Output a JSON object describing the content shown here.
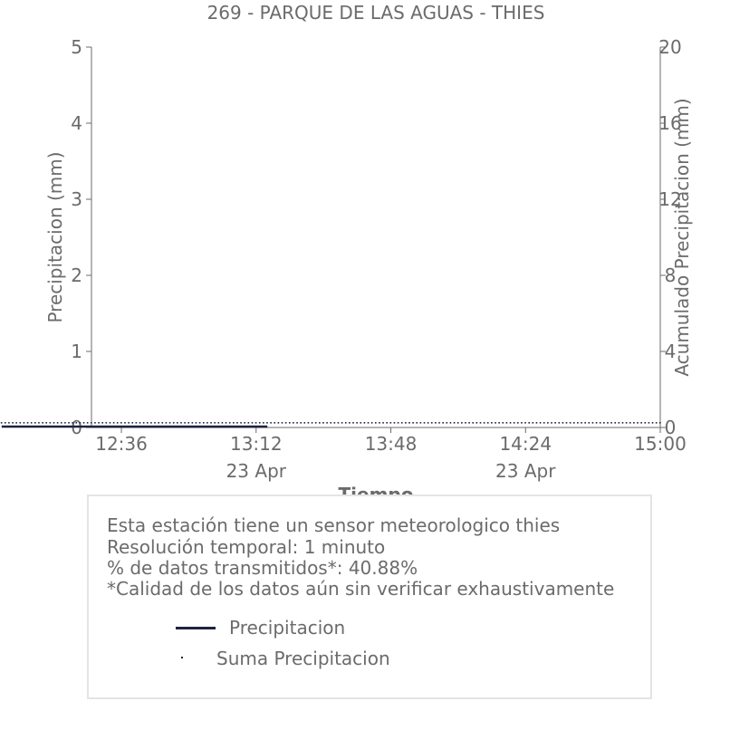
{
  "chart_data": {
    "type": "line",
    "title": "269 - PARQUE DE LAS AGUAS - THIES",
    "xlabel": "Tiempo",
    "ylabel": "Precipitacion (mm)",
    "y2label": "Acumulado Precipitacion (mm)",
    "ylim": [
      0,
      5
    ],
    "y2lim": [
      0,
      20
    ],
    "y_ticks": [
      "0",
      "1",
      "2",
      "3",
      "4",
      "5"
    ],
    "y2_ticks": [
      "0",
      "4",
      "8",
      "12",
      "16",
      "20"
    ],
    "x_ticks": [
      "12:36",
      "13:12",
      "13:48",
      "14:24",
      "15:00"
    ],
    "x_tick_sublabels": [
      "",
      "23 Apr",
      "",
      "23 Apr",
      ""
    ],
    "x_range_minutes": [
      748,
      900
    ],
    "grid": false,
    "series": [
      {
        "name": "Precipitacion",
        "axis": "left",
        "color": "#1f2340",
        "style": "line",
        "x_start": "12:04",
        "x_end": "13:15",
        "value": 0
      },
      {
        "name": "Suma Precipicion",
        "axis": "right",
        "color": "#1f2340",
        "style": "points",
        "x_start": "12:04",
        "x_end": "15:00",
        "value": 0
      }
    ]
  },
  "info": {
    "line1": "Esta estación tiene un sensor meteorologico thies",
    "line2": "Resolución temporal: 1 minuto",
    "line3": "% de datos transmitidos*: 40.88%",
    "line4": "*Calidad de los datos aún sin verificar exhaustivamente"
  },
  "legend": {
    "item1": "Precipitacion",
    "item2": "Suma Precipitacion"
  }
}
